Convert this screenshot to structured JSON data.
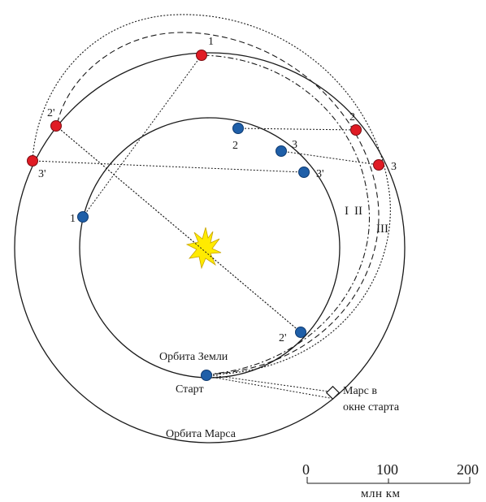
{
  "labels": {
    "earth_orbit": "Орбита Земли",
    "mars_orbit": "Орбита Марса",
    "start": "Старт",
    "mars_window_line1": "Марс в",
    "mars_window_line2": "окне старта"
  },
  "trajectories": {
    "t1": "I",
    "t2": "II",
    "t3": "III"
  },
  "earth_points": {
    "p1": "1",
    "p2": "2",
    "p3": "3",
    "p2p": "2'",
    "p3p": "3'"
  },
  "mars_points": {
    "p1": "1",
    "p2": "2",
    "p3": "3",
    "p2p": "2'",
    "p3p": "3'"
  },
  "scale": {
    "ticks": [
      "0",
      "100",
      "200"
    ],
    "unit": "млн км"
  },
  "colors": {
    "earth_marker": "#1f5fa8",
    "mars_marker": "#e01b24",
    "sun": "#ffeb00",
    "line": "#1a1a1a"
  }
}
